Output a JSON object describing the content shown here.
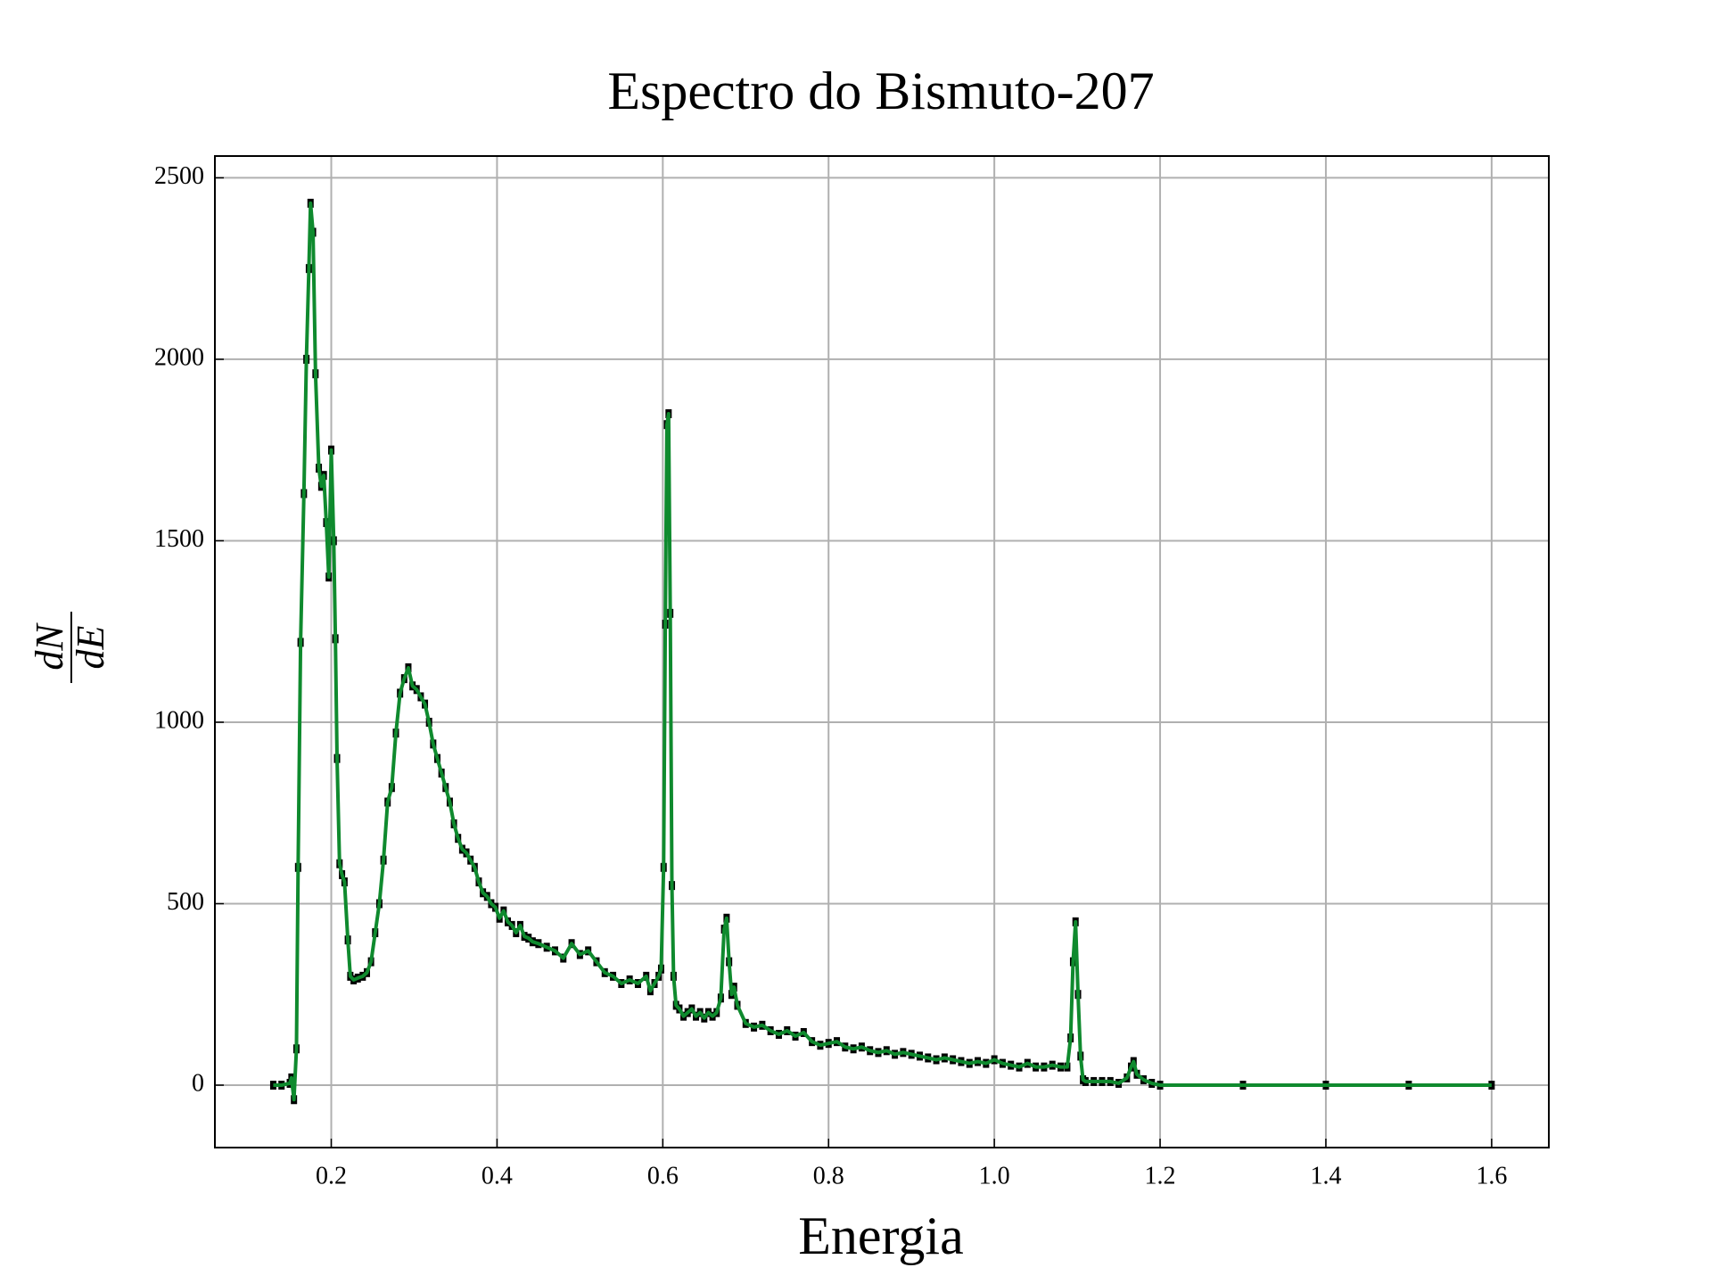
{
  "chart_data": {
    "type": "line",
    "title": "Espectro do Bismuto-207",
    "xlabel": "Energia",
    "ylabel": {
      "numerator": "dN",
      "denominator": "dE"
    },
    "xlim": [
      0.0596,
      1.669
    ],
    "ylim": [
      -172,
      2560
    ],
    "xticks": [
      0.2,
      0.4,
      0.6,
      0.8,
      {
        "value": 1,
        "label": "1.0"
      },
      1.2,
      1.4,
      1.6
    ],
    "yticks": [
      0,
      500,
      1000,
      1500,
      2000,
      2500
    ],
    "grid": true,
    "marker_color": "#000000",
    "x": [
      0.13,
      0.14,
      0.15,
      0.152,
      0.155,
      0.158,
      0.16,
      0.163,
      0.167,
      0.17,
      0.173,
      0.175,
      0.178,
      0.181,
      0.185,
      0.188,
      0.191,
      0.194,
      0.197,
      0.2,
      0.203,
      0.205,
      0.207,
      0.21,
      0.213,
      0.216,
      0.22,
      0.223,
      0.227,
      0.232,
      0.238,
      0.243,
      0.248,
      0.253,
      0.258,
      0.263,
      0.268,
      0.273,
      0.278,
      0.283,
      0.288,
      0.293,
      0.298,
      0.303,
      0.308,
      0.313,
      0.318,
      0.323,
      0.328,
      0.333,
      0.338,
      0.343,
      0.348,
      0.353,
      0.358,
      0.363,
      0.368,
      0.373,
      0.378,
      0.383,
      0.388,
      0.393,
      0.398,
      0.403,
      0.408,
      0.413,
      0.418,
      0.423,
      0.428,
      0.433,
      0.438,
      0.443,
      0.45,
      0.46,
      0.47,
      0.48,
      0.49,
      0.5,
      0.51,
      0.52,
      0.53,
      0.54,
      0.55,
      0.56,
      0.57,
      0.58,
      0.585,
      0.59,
      0.595,
      0.598,
      0.601,
      0.603,
      0.605,
      0.607,
      0.609,
      0.611,
      0.613,
      0.616,
      0.62,
      0.625,
      0.63,
      0.635,
      0.64,
      0.645,
      0.65,
      0.655,
      0.66,
      0.665,
      0.67,
      0.674,
      0.677,
      0.68,
      0.683,
      0.686,
      0.69,
      0.7,
      0.71,
      0.72,
      0.73,
      0.74,
      0.75,
      0.76,
      0.77,
      0.78,
      0.79,
      0.8,
      0.81,
      0.82,
      0.83,
      0.84,
      0.85,
      0.86,
      0.87,
      0.88,
      0.89,
      0.9,
      0.91,
      0.92,
      0.93,
      0.94,
      0.95,
      0.96,
      0.97,
      0.98,
      0.99,
      1.0,
      1.01,
      1.02,
      1.03,
      1.04,
      1.05,
      1.06,
      1.07,
      1.08,
      1.088,
      1.092,
      1.095,
      1.098,
      1.101,
      1.104,
      1.107,
      1.11,
      1.12,
      1.13,
      1.14,
      1.15,
      1.16,
      1.165,
      1.168,
      1.172,
      1.18,
      1.19,
      1.2,
      1.3,
      1.4,
      1.5,
      1.6
    ],
    "series": [
      {
        "color": "#0f8a2e",
        "values": [
          0,
          0,
          5,
          20,
          -40,
          100,
          600,
          1220,
          1630,
          2000,
          2250,
          2430,
          2350,
          1960,
          1700,
          1650,
          1680,
          1550,
          1400,
          1750,
          1500,
          1230,
          900,
          610,
          580,
          560,
          400,
          300,
          290,
          295,
          300,
          310,
          340,
          420,
          500,
          620,
          780,
          820,
          970,
          1080,
          1120,
          1150,
          1100,
          1090,
          1070,
          1050,
          1000,
          940,
          900,
          860,
          820,
          780,
          720,
          680,
          650,
          640,
          620,
          600,
          560,
          530,
          520,
          500,
          490,
          460,
          480,
          450,
          440,
          420,
          440,
          410,
          405,
          395,
          390,
          380,
          370,
          350,
          390,
          360,
          370,
          340,
          310,
          300,
          280,
          290,
          280,
          300,
          260,
          280,
          300,
          320,
          600,
          1270,
          1820,
          1850,
          1300,
          550,
          300,
          220,
          210,
          190,
          200,
          210,
          190,
          200,
          185,
          200,
          190,
          200,
          240,
          430,
          460,
          340,
          250,
          270,
          220,
          170,
          160,
          165,
          150,
          140,
          150,
          135,
          145,
          120,
          110,
          115,
          120,
          105,
          100,
          105,
          95,
          90,
          95,
          85,
          90,
          85,
          80,
          75,
          70,
          75,
          70,
          65,
          60,
          65,
          60,
          70,
          60,
          55,
          50,
          60,
          50,
          50,
          55,
          50,
          50,
          130,
          340,
          450,
          250,
          80,
          15,
          10,
          10,
          10,
          10,
          5,
          20,
          50,
          65,
          30,
          15,
          5,
          0,
          0,
          0,
          0,
          0
        ]
      }
    ]
  }
}
